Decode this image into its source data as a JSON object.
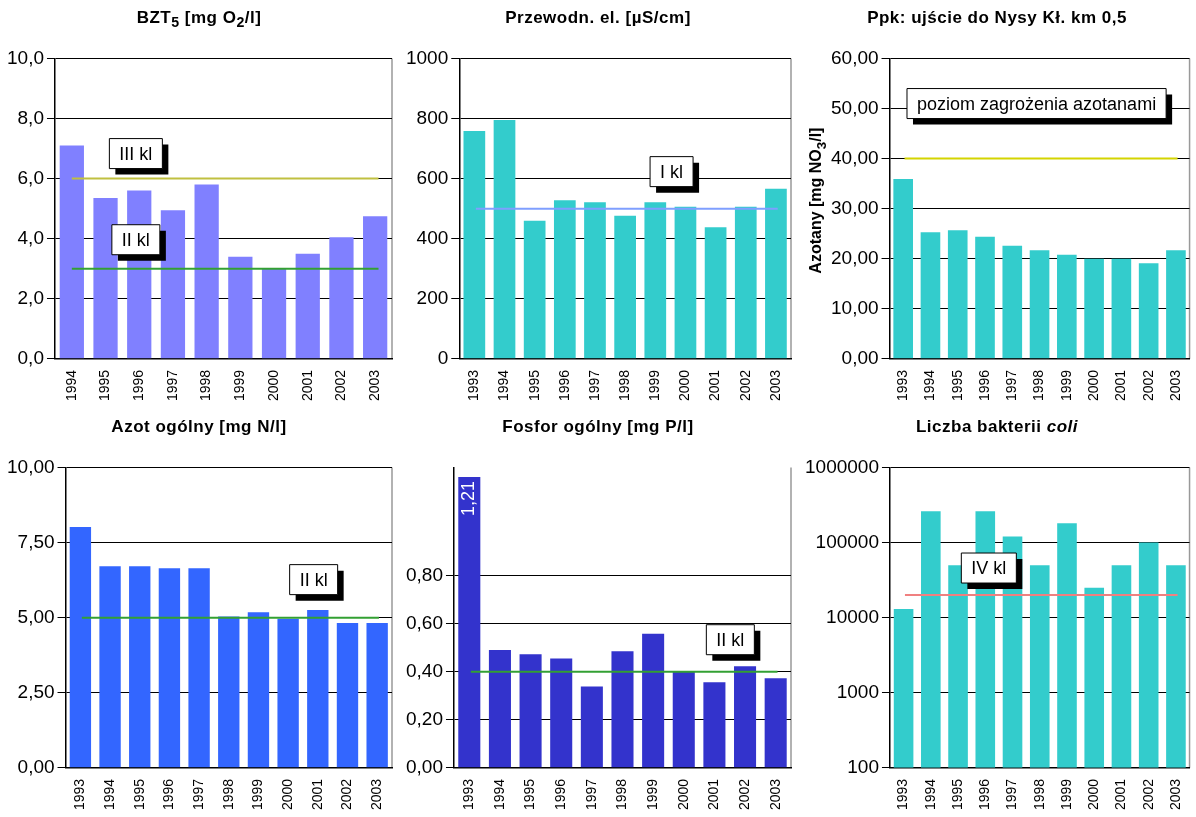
{
  "chart_data": [
    {
      "type": "bar",
      "title": "BZT$_{5}$ [mg O$_{2}$/l]",
      "categories": [
        "1994",
        "1995",
        "1996",
        "1997",
        "1998",
        "1999",
        "2000",
        "2001",
        "2002",
        "2003"
      ],
      "values": [
        7.1,
        5.35,
        5.6,
        4.95,
        5.8,
        3.4,
        3.0,
        3.5,
        4.05,
        4.75
      ],
      "color": "#8080ff",
      "ylim": [
        0,
        10
      ],
      "yticks": [
        {
          "value": 0,
          "label": "0,0"
        },
        {
          "value": 2,
          "label": "2,0"
        },
        {
          "value": 4,
          "label": "4,0"
        },
        {
          "value": 6,
          "label": "6,0"
        },
        {
          "value": 8,
          "label": "8,0"
        },
        {
          "value": 10,
          "label": "10,0"
        }
      ],
      "grid": "y",
      "ref_lines": [
        {
          "axis": "y",
          "value": 6,
          "label": "III kl",
          "color": "#c0c040"
        },
        {
          "axis": "y",
          "value": 3,
          "label": "II kl",
          "color": "#33a033"
        }
      ]
    },
    {
      "type": "bar",
      "title": "Przewodn. el.  [µS/cm]",
      "categories": [
        "1993",
        "1994",
        "1995",
        "1996",
        "1997",
        "1998",
        "1999",
        "2000",
        "2001",
        "2002",
        "2003"
      ],
      "values": [
        758,
        795,
        460,
        528,
        521,
        476,
        521,
        506,
        438,
        506,
        566
      ],
      "color": "#33cccc",
      "ylim": [
        0,
        1000
      ],
      "yticks": [
        0,
        200,
        400,
        600,
        800,
        1000
      ],
      "grid": "y",
      "ref_lines": [
        {
          "axis": "y",
          "value": 500,
          "label": "I kl",
          "color": "#7f9fff"
        }
      ]
    },
    {
      "type": "bar",
      "title": "Ppk: ujście do Nysy Kł. km 0,5",
      "ylabel": "Azotany [mg NO$_{3}$/l]",
      "categories": [
        "1993",
        "1994",
        "1995",
        "1996",
        "1997",
        "1998",
        "1999",
        "2000",
        "2001",
        "2002",
        "2003"
      ],
      "values": [
        35.9,
        25.3,
        25.7,
        24.4,
        22.6,
        21.7,
        20.8,
        20.0,
        20.0,
        19.1,
        21.7
      ],
      "color": "#33cccc",
      "ylim": [
        0,
        60
      ],
      "yticks": [
        {
          "value": 0,
          "label": "0,00"
        },
        {
          "value": 10,
          "label": "10,00"
        },
        {
          "value": 20,
          "label": "20,00"
        },
        {
          "value": 30,
          "label": "30,00"
        },
        {
          "value": 40,
          "label": "40,00"
        },
        {
          "value": 50,
          "label": "50,00"
        },
        {
          "value": 60,
          "label": "60,00"
        }
      ],
      "grid": "y",
      "ref_lines": [
        {
          "axis": "y",
          "value": 40,
          "label": "poziom zagrożenia azotanami",
          "color": "#d4d400"
        }
      ]
    },
    {
      "type": "bar",
      "title": "Azot ogólny [mg N/l]",
      "categories": [
        "1993",
        "1994",
        "1995",
        "1996",
        "1997",
        "1998",
        "1999",
        "2000",
        "2001",
        "2002",
        "2003"
      ],
      "values": [
        8.02,
        6.71,
        6.71,
        6.64,
        6.64,
        5.04,
        5.18,
        4.96,
        5.25,
        4.82,
        4.82
      ],
      "color": "#3366ff",
      "ylim": [
        0,
        10
      ],
      "yticks": [
        {
          "value": 0,
          "label": "0,00"
        },
        {
          "value": 2.5,
          "label": "2,50"
        },
        {
          "value": 5,
          "label": "5,00"
        },
        {
          "value": 7.5,
          "label": "7,50"
        },
        {
          "value": 10,
          "label": "10,00"
        }
      ],
      "grid": "y",
      "ref_lines": [
        {
          "axis": "y",
          "value": 5,
          "label": "II kl",
          "color": "#33a033"
        }
      ]
    },
    {
      "type": "bar",
      "title": "Fosfor ogólny [mg P/l]",
      "categories": [
        "1993",
        "1994",
        "1995",
        "1996",
        "1997",
        "1998",
        "1999",
        "2000",
        "2001",
        "2002",
        "2003"
      ],
      "values": [
        1.21,
        0.49,
        0.473,
        0.455,
        0.338,
        0.485,
        0.558,
        0.4,
        0.356,
        0.423,
        0.373
      ],
      "color": "#3333cc",
      "value_labels": [
        "1,21",
        null,
        null,
        null,
        null,
        null,
        null,
        null,
        null,
        null,
        null
      ],
      "ylim": [
        0,
        1.25
      ],
      "yticks": [
        {
          "value": 0,
          "label": "0,00"
        },
        {
          "value": 0.2,
          "label": "0,20"
        },
        {
          "value": 0.4,
          "label": "0,40"
        },
        {
          "value": 0.6,
          "label": "0,60"
        },
        {
          "value": 0.8,
          "label": "0,80"
        }
      ],
      "grid": "y",
      "ref_lines": [
        {
          "axis": "y",
          "value": 0.4,
          "label": "II kl",
          "color": "#33a033"
        }
      ]
    },
    {
      "type": "bar",
      "title": "Liczba bakterii *coli*",
      "categories": [
        "1993",
        "1994",
        "1995",
        "1996",
        "1997",
        "1998",
        "1999",
        "2000",
        "2001",
        "2002",
        "2003"
      ],
      "values": [
        13000,
        260000,
        50000,
        260000,
        120000,
        50000,
        180000,
        25000,
        50000,
        100000,
        50000
      ],
      "color": "#33cccc",
      "log": "y",
      "ylim": [
        100,
        1000000
      ],
      "yticks": [
        100,
        1000,
        10000,
        100000,
        1000000
      ],
      "grid": "y",
      "ref_lines": [
        {
          "axis": "y",
          "value": 20000,
          "label": "IV kl",
          "color": "#f08080"
        }
      ]
    }
  ]
}
